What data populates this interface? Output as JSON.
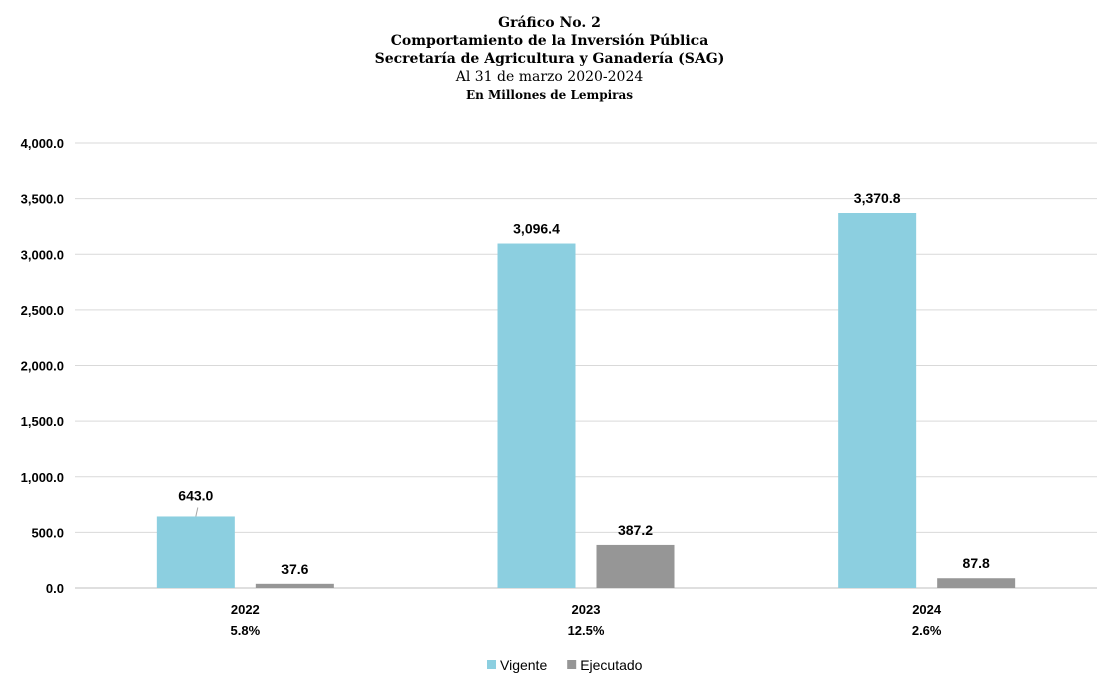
{
  "chart_data": {
    "type": "bar",
    "title_lines": [
      "Gráfico No. 2",
      "Comportamiento de la Inversión Pública",
      "Secretaría de Agricultura y Ganadería (SAG)",
      "Al 31 de marzo 2020-2024",
      "En Millones de Lempiras"
    ],
    "categories": [
      "2022",
      "2023",
      "2024"
    ],
    "category_sublabels": [
      "5.8%",
      "12.5%",
      "2.6%"
    ],
    "series": [
      {
        "name": "Vigente",
        "values": [
          643.0,
          3096.4,
          3370.8
        ],
        "labels": [
          "643.0",
          "3,096.4",
          "3,370.8"
        ],
        "color": "#8ccfe0"
      },
      {
        "name": "Ejecutado",
        "values": [
          37.6,
          387.2,
          87.8
        ],
        "labels": [
          "37.6",
          "387.2",
          "87.8"
        ],
        "color": "#969696"
      }
    ],
    "ylim": [
      0,
      4000
    ],
    "yticks": [
      0,
      500,
      1000,
      1500,
      2000,
      2500,
      3000,
      3500,
      4000
    ],
    "ytick_labels": [
      "0.0",
      "500.0",
      "1,000.0",
      "1,500.0",
      "2,000.0",
      "2,500.0",
      "3,000.0",
      "3,500.0",
      "4,000.0"
    ],
    "grid": true,
    "gridline_color": "#d9d9d9",
    "legend_position": "bottom"
  }
}
